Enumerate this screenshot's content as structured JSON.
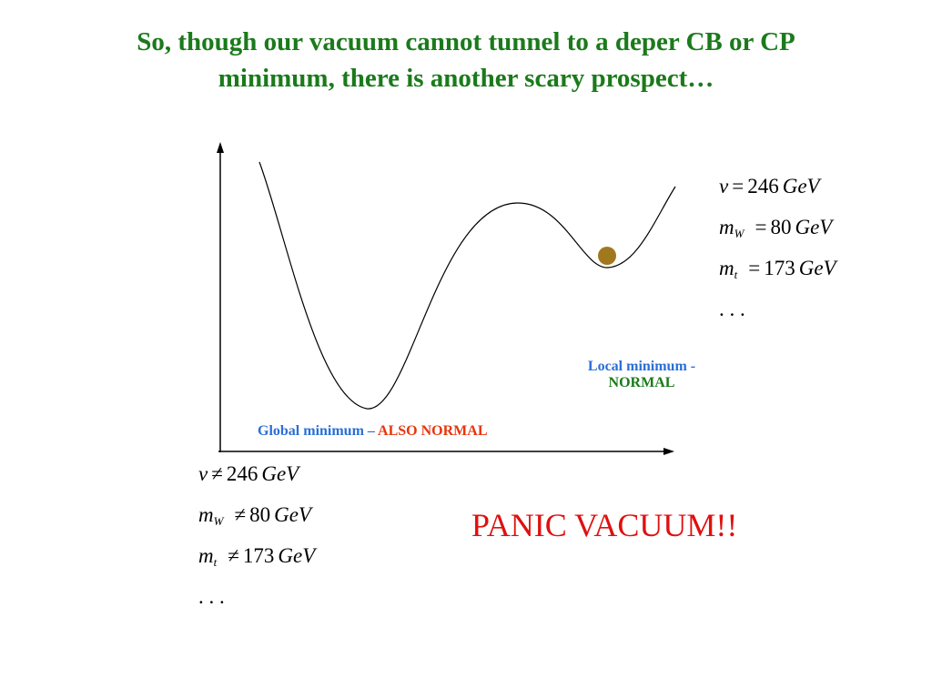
{
  "title": [
    "So, though our vacuum cannot tunnel to a deper CB or CP",
    "minimum, there is another scary prospect…"
  ],
  "local_minimum": {
    "label": "Local minimum -",
    "status": "NORMAL"
  },
  "global_minimum": {
    "label": "Global minimum –",
    "status": "ALSO NORMAL"
  },
  "normal_equations": [
    {
      "symbol": "v",
      "relation": "=",
      "value": 246,
      "unit": "GeV"
    },
    {
      "symbol": "m",
      "subscript": "W",
      "relation": "=",
      "value": 80,
      "unit": "GeV"
    },
    {
      "symbol": "m",
      "subscript": "t",
      "relation": "=",
      "value": 173,
      "unit": "GeV"
    }
  ],
  "normal_ellipsis": ". . .",
  "panic_equations": [
    {
      "symbol": "v",
      "relation": "≠",
      "value": 246,
      "unit": "GeV"
    },
    {
      "symbol": "m",
      "subscript": "W",
      "relation": "≠",
      "value": 80,
      "unit": "GeV"
    },
    {
      "symbol": "m",
      "subscript": "t",
      "relation": "≠",
      "value": 173,
      "unit": "GeV"
    }
  ],
  "panic_ellipsis": ". . .",
  "panic_label": "PANIC VACUUM!!"
}
